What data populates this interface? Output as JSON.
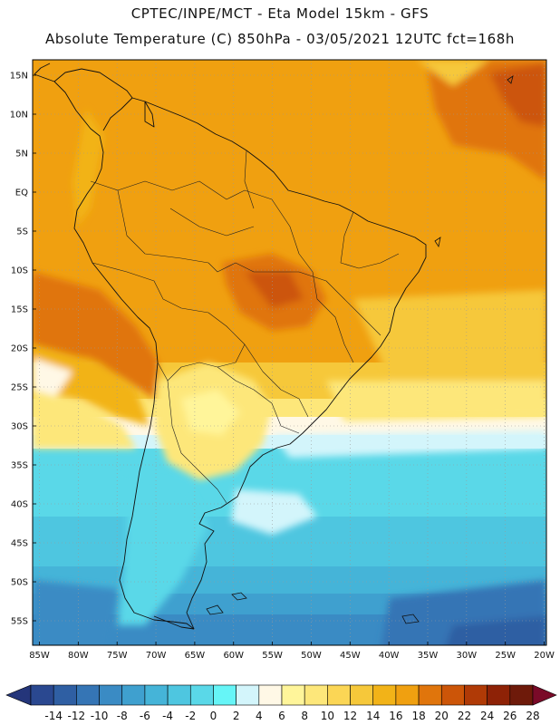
{
  "header": {
    "title_line1": "CPTEC/INPE/MCT -  Eta Model 15km - GFS",
    "title_line2": "Absolute Temperature (C) 850hPa - 03/05/2021 12UTC fct=168h"
  },
  "map": {
    "lat_labels": [
      {
        "lat": 15,
        "label": "15N"
      },
      {
        "lat": 10,
        "label": "10N"
      },
      {
        "lat": 5,
        "label": "5N"
      },
      {
        "lat": 0,
        "label": "EQ"
      },
      {
        "lat": -5,
        "label": "5S"
      },
      {
        "lat": -10,
        "label": "10S"
      },
      {
        "lat": -15,
        "label": "15S"
      },
      {
        "lat": -20,
        "label": "20S"
      },
      {
        "lat": -25,
        "label": "25S"
      },
      {
        "lat": -30,
        "label": "30S"
      },
      {
        "lat": -35,
        "label": "35S"
      },
      {
        "lat": -40,
        "label": "40S"
      },
      {
        "lat": -45,
        "label": "45S"
      },
      {
        "lat": -50,
        "label": "50S"
      },
      {
        "lat": -55,
        "label": "55S"
      }
    ],
    "lon_labels": [
      {
        "lon": -85,
        "label": "85W"
      },
      {
        "lon": -80,
        "label": "80W"
      },
      {
        "lon": -75,
        "label": "75W"
      },
      {
        "lon": -70,
        "label": "70W"
      },
      {
        "lon": -65,
        "label": "65W"
      },
      {
        "lon": -60,
        "label": "60W"
      },
      {
        "lon": -55,
        "label": "55W"
      },
      {
        "lon": -50,
        "label": "50W"
      },
      {
        "lon": -45,
        "label": "45W"
      },
      {
        "lon": -40,
        "label": "40W"
      },
      {
        "lon": -35,
        "label": "35W"
      },
      {
        "lon": -30,
        "label": "30W"
      },
      {
        "lon": -25,
        "label": "25W"
      },
      {
        "lon": -20,
        "label": "20W"
      }
    ]
  },
  "colorbar": {
    "labels": [
      "-14",
      "-12",
      "-10",
      "-8",
      "-6",
      "-4",
      "-2",
      "0",
      "2",
      "4",
      "6",
      "8",
      "10",
      "12",
      "14",
      "16",
      "18",
      "20",
      "22",
      "24",
      "26",
      "28"
    ],
    "colors": [
      "#2a4890",
      "#2f5fa3",
      "#3575b5",
      "#3a8bc4",
      "#3fa0cf",
      "#45b4d8",
      "#4ec6e0",
      "#5ad8e8",
      "#66f5f7",
      "#d3f5fb",
      "#fff8e6",
      "#fff59a",
      "#fde77a",
      "#fbd655",
      "#f6c83a",
      "#f2b318",
      "#f0a010",
      "#e0750c",
      "#cc5508",
      "#b03a06",
      "#8e2206",
      "#6e1a0a"
    ],
    "low_color": "#24357a",
    "high_color": "#7a0a28"
  }
}
